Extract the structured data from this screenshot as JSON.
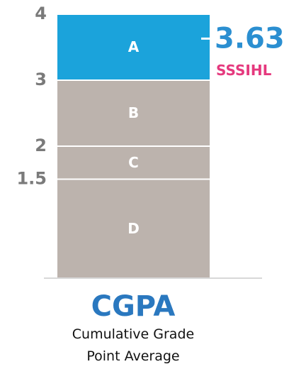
{
  "chart_data": {
    "type": "stacked-bar",
    "title": "CGPA",
    "subtitle": "Cumulative Grade Point Average",
    "series": [
      {
        "name": "D",
        "color": "#bcb3ad",
        "values": [
          1.5
        ]
      },
      {
        "name": "C",
        "color": "#bcb3ad",
        "values": [
          0.5
        ]
      },
      {
        "name": "B",
        "color": "#bcb3ad",
        "values": [
          1
        ]
      },
      {
        "name": "A",
        "color": "#1ba3db",
        "values": [
          1
        ]
      }
    ],
    "marker": {
      "value": 3.63,
      "label": "SSSIHL",
      "color": "#2b8fd1",
      "label_color": "#e5397e"
    },
    "ylim": [
      0,
      4
    ],
    "yticks": [
      1.5,
      2,
      3,
      4
    ],
    "title_color": "#2a78bf"
  }
}
